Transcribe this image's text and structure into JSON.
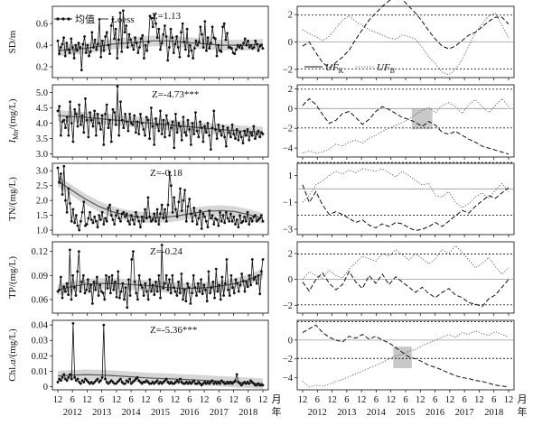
{
  "legend": {
    "mean_label": "均值",
    "loess_label": "Loess",
    "ufk_label": "UF",
    "ufk_sub": "K",
    "ufb_label": "UF",
    "ufb_sub": "B"
  },
  "x_axis": {
    "month_tick_labels": [
      "12",
      "6",
      "12",
      "6",
      "12",
      "6",
      "12",
      "6",
      "12",
      "6",
      "12",
      "6",
      "12",
      "6",
      "12"
    ],
    "year_labels": [
      "2012",
      "2013",
      "2014",
      "2015",
      "2016",
      "2017",
      "2018"
    ],
    "month_unit": "月",
    "year_unit": "年"
  },
  "mk_threshold": 1.96,
  "chart_data": [
    {
      "type": "line",
      "panel": "SD",
      "ylabel": "SD/m",
      "z_label": "Z=1.13",
      "yticks": [
        0.2,
        0.4,
        0.6
      ],
      "ylim": [
        0.1,
        0.76
      ],
      "x_start": "2011-12",
      "x_end": "2018-12",
      "values": [
        0.44,
        0.32,
        0.38,
        0.41,
        0.47,
        0.3,
        0.42,
        0.36,
        0.33,
        0.46,
        0.38,
        0.28,
        0.4,
        0.35,
        0.42,
        0.38,
        0.17,
        0.41,
        0.48,
        0.33,
        0.4,
        0.3,
        0.34,
        0.52,
        0.38,
        0.45,
        0.36,
        0.41,
        0.64,
        0.29,
        0.44,
        0.35,
        0.48,
        0.52,
        0.4,
        0.32,
        0.58,
        0.64,
        0.46,
        0.55,
        0.28,
        0.45,
        0.7,
        0.34,
        0.72,
        0.52,
        0.58,
        0.38,
        0.5,
        0.45,
        0.4,
        0.36,
        0.47,
        0.42,
        0.33,
        0.38,
        0.46,
        0.49,
        0.28,
        0.4,
        0.35,
        0.43,
        0.67,
        0.65,
        0.57,
        0.68,
        0.6,
        0.47,
        0.55,
        0.36,
        0.42,
        0.5,
        0.58,
        0.48,
        0.26,
        0.38,
        0.55,
        0.47,
        0.33,
        0.41,
        0.48,
        0.38,
        0.29,
        0.52,
        0.6,
        0.43,
        0.36,
        0.55,
        0.3,
        0.4,
        0.35,
        0.28,
        0.37,
        0.44,
        0.4,
        0.43,
        0.57,
        0.5,
        0.38,
        0.62,
        0.35,
        0.47,
        0.37,
        0.42,
        0.57,
        0.47,
        0.46,
        0.3,
        0.4,
        0.35,
        0.34,
        0.57,
        0.6,
        0.45,
        0.51,
        0.38,
        0.38,
        0.37,
        0.33,
        0.32,
        0.36,
        0.4,
        0.38,
        0.4,
        0.37,
        0.42,
        0.46,
        0.4,
        0.44,
        0.38,
        0.4,
        0.37,
        0.38,
        0.44,
        0.41,
        0.35,
        0.39,
        0.4,
        0.37
      ],
      "loess": [
        0.35,
        0.36,
        0.37,
        0.39,
        0.41,
        0.42,
        0.43,
        0.44,
        0.44,
        0.43,
        0.42,
        0.41,
        0.4,
        0.4,
        0.4,
        0.41
      ],
      "mk_ylim": [
        -2.6,
        2.6
      ],
      "mk_yticks": [
        -2,
        0,
        2
      ],
      "ufk": [
        -0.3,
        0.0,
        -0.8,
        -1.5,
        -1.9,
        -1.5,
        -1.1,
        -0.6,
        0.2,
        0.9,
        1.6,
        2.1,
        2.6,
        3.0,
        3.3,
        3.1,
        2.6,
        2.1,
        1.5,
        0.8,
        0.2,
        -0.3,
        -0.5,
        -0.3,
        0.1,
        0.5,
        0.7,
        1.1,
        1.5,
        1.8,
        1.8,
        1.3
      ],
      "ufb": [
        0.9,
        0.6,
        0.4,
        0.1,
        0.4,
        1.0,
        1.6,
        1.9,
        1.5,
        1.2,
        0.9,
        0.7,
        0.5,
        0.3,
        0.2,
        0.5,
        0.4,
        0.2,
        -0.4,
        -1.1,
        -1.6,
        -2.2,
        -2.4,
        -2.0,
        -1.3,
        -0.3,
        0.7,
        1.3,
        1.9,
        2.1,
        1.2,
        0.3
      ],
      "shade": null
    },
    {
      "type": "line",
      "panel": "IMn",
      "ylabel": "I",
      "ylabel_sub": "Mn",
      "ylabel_tail": "/(mg/L)",
      "z_label": "Z=-4.73***",
      "yticks": [
        3.0,
        3.5,
        4.0,
        4.5,
        5.0
      ],
      "ylim": [
        2.9,
        5.25
      ],
      "x_start": "2011-12",
      "x_end": "2018-12",
      "values": [
        4.4,
        4.55,
        3.6,
        4.05,
        4.1,
        3.85,
        4.2,
        3.6,
        4.7,
        4.0,
        3.4,
        4.45,
        4.3,
        3.9,
        4.6,
        3.95,
        4.25,
        3.7,
        4.8,
        4.1,
        3.55,
        4.35,
        4.1,
        3.9,
        4.4,
        3.6,
        4.3,
        4.0,
        3.8,
        4.25,
        3.3,
        4.3,
        4.6,
        3.85,
        4.1,
        3.4,
        4.45,
        4.35,
        3.95,
        5.2,
        3.6,
        4.7,
        4.1,
        3.85,
        4.3,
        4.05,
        3.75,
        4.3,
        4.0,
        3.95,
        4.25,
        3.7,
        4.05,
        3.65,
        4.3,
        4.0,
        3.8,
        3.6,
        4.2,
        4.1,
        3.5,
        4.5,
        3.9,
        3.3,
        4.15,
        3.95,
        3.75,
        4.4,
        3.65,
        4.1,
        3.55,
        4.25,
        4.0,
        3.6,
        3.85,
        4.05,
        3.2,
        4.3,
        3.7,
        4.0,
        3.9,
        3.45,
        4.2,
        3.7,
        3.6,
        4.1,
        3.8,
        3.3,
        4.0,
        3.65,
        4.35,
        3.75,
        3.55,
        4.05,
        3.85,
        3.4,
        3.9,
        3.7,
        4.0,
        3.6,
        3.15,
        3.85,
        4.4,
        3.8,
        3.5,
        3.95,
        3.75,
        3.6,
        3.9,
        3.55,
        3.25,
        3.85,
        3.7,
        3.55,
        3.95,
        3.65,
        3.5,
        3.8,
        3.45,
        3.7,
        3.55,
        3.35,
        3.75,
        3.6,
        3.8,
        3.45,
        3.7,
        3.6,
        3.9,
        3.5,
        3.65,
        3.75,
        3.55,
        3.7,
        3.65
      ],
      "loess": [
        4.25,
        4.22,
        4.19,
        4.15,
        4.11,
        4.07,
        4.03,
        3.99,
        3.95,
        3.91,
        3.87,
        3.83,
        3.79,
        3.76,
        3.73,
        3.71
      ],
      "mk_ylim": [
        -4.9,
        2.4
      ],
      "mk_yticks": [
        -4,
        -2,
        0,
        2
      ],
      "ufk": [
        0.3,
        1.0,
        0.4,
        -0.6,
        -1.5,
        -1.2,
        -0.5,
        -0.3,
        -0.9,
        -1.6,
        -1.1,
        -0.3,
        0.2,
        -0.1,
        -0.5,
        -0.9,
        -1.1,
        -1.4,
        -1.8,
        -1.3,
        -1.7,
        -2.4,
        -2.6,
        -2.3,
        -2.7,
        -3.1,
        -3.4,
        -3.8,
        -4.0,
        -4.2,
        -4.4,
        -4.6
      ],
      "ufb": [
        -4.5,
        -4.3,
        -4.5,
        -4.4,
        -4.1,
        -3.6,
        -3.8,
        -3.4,
        -3.2,
        -3.5,
        -3.0,
        -2.7,
        -2.3,
        -2.0,
        -1.7,
        -1.4,
        -1.1,
        -0.6,
        -0.2,
        0.1,
        -0.4,
        0.3,
        0.6,
        0.2,
        -0.5,
        0.4,
        0.9,
        0.2,
        -0.4,
        0.3,
        1.0,
        0.2
      ],
      "shade": {
        "x_from": 0.53,
        "x_to": 0.63,
        "y_from": -2.1,
        "y_to": 0.0
      }
    },
    {
      "type": "line",
      "panel": "TN",
      "ylabel": "TN/(mg/L)",
      "z_label": "Z=-0.18",
      "yticks": [
        1.0,
        1.5,
        2.0,
        2.5,
        3.0
      ],
      "ylim": [
        0.85,
        3.25
      ],
      "x_start": "2011-12",
      "x_end": "2018-12",
      "values": [
        3.1,
        2.6,
        2.9,
        2.2,
        3.15,
        2.0,
        1.6,
        2.4,
        1.9,
        1.3,
        1.7,
        1.25,
        1.5,
        1.15,
        1.0,
        1.3,
        1.6,
        1.95,
        1.15,
        1.2,
        1.4,
        1.6,
        1.35,
        1.25,
        1.45,
        1.3,
        1.1,
        1.5,
        1.35,
        1.6,
        1.2,
        1.4,
        1.3,
        1.75,
        1.85,
        1.5,
        1.35,
        1.2,
        1.5,
        1.65,
        1.4,
        1.3,
        1.55,
        1.6,
        1.45,
        1.55,
        1.3,
        1.2,
        1.5,
        1.35,
        1.2,
        1.6,
        1.45,
        1.3,
        1.1,
        1.45,
        1.3,
        1.7,
        1.4,
        2.1,
        1.45,
        1.3,
        1.35,
        1.55,
        1.3,
        1.7,
        1.2,
        1.55,
        1.85,
        1.4,
        1.7,
        1.3,
        1.85,
        2.95,
        2.5,
        1.6,
        2.1,
        1.7,
        1.45,
        1.95,
        2.4,
        1.65,
        2.0,
        2.35,
        1.3,
        1.8,
        2.05,
        1.55,
        1.3,
        1.75,
        1.5,
        1.2,
        1.4,
        1.65,
        1.05,
        1.55,
        1.45,
        1.3,
        1.1,
        1.65,
        1.4,
        1.5,
        1.2,
        1.4,
        1.35,
        1.15,
        1.6,
        1.3,
        1.5,
        1.25,
        1.6,
        1.4,
        1.3,
        1.55,
        1.3,
        1.45,
        1.2,
        1.35,
        1.1,
        1.5,
        1.25,
        1.3,
        1.45,
        1.3,
        1.6,
        1.2,
        1.4,
        1.3,
        1.45,
        1.5,
        1.3,
        1.35,
        1.4,
        1.5,
        1.3
      ],
      "loess": [
        2.65,
        2.35,
        2.05,
        1.8,
        1.62,
        1.5,
        1.44,
        1.42,
        1.44,
        1.5,
        1.58,
        1.64,
        1.66,
        1.62,
        1.52,
        1.4
      ],
      "mk_ylim": [
        -3.4,
        1.9
      ],
      "mk_yticks": [
        -3,
        -1,
        1
      ],
      "ufk": [
        0.3,
        -1.0,
        -0.2,
        -1.2,
        -1.9,
        -1.7,
        -1.9,
        -2.2,
        -2.5,
        -2.3,
        -2.7,
        -2.9,
        -2.6,
        -2.8,
        -2.5,
        -2.6,
        -2.9,
        -3.1,
        -3.0,
        -2.8,
        -2.5,
        -2.8,
        -2.4,
        -2.0,
        -1.6,
        -1.8,
        -1.3,
        -0.9,
        -0.5,
        -0.7,
        -0.3,
        0.1
      ],
      "ufb": [
        -1.0,
        -0.5,
        0.3,
        0.6,
        1.0,
        1.3,
        1.1,
        1.4,
        1.2,
        1.5,
        1.4,
        1.3,
        1.5,
        1.2,
        0.9,
        1.3,
        1.0,
        0.6,
        0.3,
        0.4,
        -0.5,
        -0.6,
        -0.2,
        -1.0,
        -1.4,
        -1.1,
        -0.6,
        -0.3,
        -0.7,
        -0.1,
        0.4,
        -0.2
      ],
      "shade": null
    },
    {
      "type": "line",
      "panel": "TP",
      "ylabel": "TP/(mg/L)",
      "z_label": "Z=-0.24",
      "yticks": [
        0.06,
        0.09,
        0.12
      ],
      "ylim": [
        0.043,
        0.132
      ],
      "x_start": "2011-12",
      "x_end": "2018-12",
      "values": [
        0.07,
        0.072,
        0.088,
        0.062,
        0.076,
        0.07,
        0.08,
        0.066,
        0.122,
        0.06,
        0.09,
        0.075,
        0.065,
        0.095,
        0.12,
        0.07,
        0.082,
        0.09,
        0.068,
        0.072,
        0.085,
        0.07,
        0.078,
        0.055,
        0.082,
        0.072,
        0.088,
        0.065,
        0.078,
        0.07,
        0.068,
        0.06,
        0.09,
        0.074,
        0.088,
        0.068,
        0.09,
        0.072,
        0.082,
        0.063,
        0.095,
        0.062,
        0.07,
        0.08,
        0.06,
        0.075,
        0.05,
        0.085,
        0.065,
        0.11,
        0.12,
        0.082,
        0.068,
        0.06,
        0.09,
        0.078,
        0.075,
        0.065,
        0.08,
        0.07,
        0.06,
        0.085,
        0.07,
        0.078,
        0.066,
        0.082,
        0.07,
        0.09,
        0.062,
        0.128,
        0.074,
        0.08,
        0.09,
        0.072,
        0.085,
        0.068,
        0.09,
        0.075,
        0.07,
        0.065,
        0.082,
        0.068,
        0.092,
        0.06,
        0.072,
        0.058,
        0.08,
        0.075,
        0.055,
        0.068,
        0.09,
        0.075,
        0.065,
        0.08,
        0.07,
        0.085,
        0.067,
        0.078,
        0.072,
        0.058,
        0.095,
        0.068,
        0.075,
        0.082,
        0.062,
        0.098,
        0.07,
        0.078,
        0.06,
        0.088,
        0.065,
        0.08,
        0.11,
        0.072,
        0.065,
        0.09,
        0.075,
        0.068,
        0.085,
        0.08,
        0.07,
        0.078,
        0.092,
        0.083,
        0.07,
        0.082,
        0.076,
        0.09,
        0.078,
        0.11,
        0.085,
        0.088,
        0.08,
        0.09,
        0.067,
        0.095,
        0.11
      ],
      "loess": [
        0.072,
        0.076,
        0.079,
        0.08,
        0.08,
        0.079,
        0.078,
        0.077,
        0.075,
        0.074,
        0.074,
        0.075,
        0.077,
        0.08,
        0.085,
        0.092
      ],
      "mk_ylim": [
        -2.6,
        2.9
      ],
      "mk_yticks": [
        -2,
        0,
        2
      ],
      "ufk": [
        -0.2,
        -0.9,
        0.0,
        0.5,
        -0.3,
        -0.8,
        -0.4,
        0.6,
        -0.2,
        -0.7,
        0.3,
        -0.3,
        0.4,
        -0.4,
        0.2,
        -0.2,
        -0.6,
        -1.0,
        -0.6,
        -1.1,
        -1.4,
        -1.0,
        -0.7,
        -1.2,
        -1.4,
        -1.8,
        -1.9,
        -2.1,
        -1.5,
        -1.2,
        -0.6,
        0.0
      ],
      "ufb": [
        0.0,
        0.6,
        0.3,
        0.1,
        0.7,
        0.3,
        0.1,
        0.8,
        1.3,
        1.8,
        1.6,
        1.4,
        2.0,
        1.8,
        2.3,
        1.9,
        1.5,
        2.0,
        1.6,
        1.2,
        1.6,
        2.3,
        2.0,
        2.6,
        2.1,
        1.5,
        0.9,
        1.2,
        1.7,
        1.0,
        0.4,
        0.9
      ],
      "shade": null
    },
    {
      "type": "line",
      "panel": "Chla",
      "ylabel": "Chl.",
      "ylabel_italic": "a",
      "ylabel_tail": "/(mg/L)",
      "z_label": "Z=-5.36***",
      "yticks": [
        0,
        0.01,
        0.02,
        0.03,
        0.04
      ],
      "ylim": [
        -0.002,
        0.043
      ],
      "x_start": "2011-12",
      "x_end": "2018-12",
      "values": [
        0.003,
        0.005,
        0.004,
        0.006,
        0.008,
        0.005,
        0.004,
        0.006,
        0.008,
        0.005,
        0.041,
        0.006,
        0.004,
        0.005,
        0.003,
        0.002,
        0.004,
        0.003,
        0.005,
        0.004,
        0.003,
        0.002,
        0.003,
        0.002,
        0.003,
        0.004,
        0.005,
        0.003,
        0.004,
        0.006,
        0.04,
        0.005,
        0.003,
        0.002,
        0.003,
        0.004,
        0.003,
        0.002,
        0.002,
        0.003,
        0.004,
        0.005,
        0.003,
        0.002,
        0.002,
        0.004,
        0.003,
        0.005,
        0.002,
        0.003,
        0.004,
        0.005,
        0.006,
        0.004,
        0.003,
        0.002,
        0.003,
        0.003,
        0.004,
        0.003,
        0.002,
        0.002,
        0.003,
        0.002,
        0.003,
        0.004,
        0.002,
        0.003,
        0.002,
        0.003,
        0.004,
        0.005,
        0.003,
        0.002,
        0.003,
        0.002,
        0.002,
        0.003,
        0.004,
        0.003,
        0.005,
        0.003,
        0.002,
        0.002,
        0.003,
        0.002,
        0.003,
        0.002,
        0.003,
        0.004,
        0.002,
        0.002,
        0.003,
        0.002,
        0.001,
        0.002,
        0.003,
        0.002,
        0.003,
        0.002,
        0.003,
        0.004,
        0.002,
        0.003,
        0.002,
        0.003,
        0.002,
        0.004,
        0.003,
        0.002,
        0.002,
        0.003,
        0.002,
        0.003,
        0.002,
        0.003,
        0.004,
        0.008,
        0.003,
        0.002,
        0.001,
        0.002,
        0.003,
        0.002,
        0.003,
        0.002,
        0.004,
        0.003,
        0.002,
        0.001,
        0.001,
        0.002,
        0.001,
        0.001,
        0.001
      ],
      "loess": [
        0.007,
        0.0075,
        0.0078,
        0.0076,
        0.0072,
        0.0066,
        0.006,
        0.0055,
        0.0052,
        0.0048,
        0.0044,
        0.004,
        0.0035,
        0.003,
        0.0025,
        0.002
      ],
      "mk_ylim": [
        -5.3,
        2.1
      ],
      "mk_yticks": [
        -4,
        -2,
        0
      ],
      "ufk": [
        0.8,
        1.2,
        1.6,
        0.8,
        0.3,
        0.0,
        -0.2,
        0.4,
        0.2,
        0.6,
        0.1,
        0.4,
        0.0,
        -0.3,
        -0.8,
        -1.3,
        -1.8,
        -2.0,
        -2.3,
        -2.7,
        -2.9,
        -3.2,
        -3.5,
        -3.8,
        -4.0,
        -4.1,
        -4.3,
        -4.4,
        -4.6,
        -4.8,
        -4.9,
        -5.0
      ],
      "ufb": [
        -4.4,
        -5.0,
        -4.8,
        -4.9,
        -4.7,
        -4.4,
        -4.2,
        -3.9,
        -3.6,
        -3.3,
        -3.0,
        -2.7,
        -2.4,
        -2.0,
        -1.7,
        -1.5,
        -1.2,
        -1.0,
        -0.6,
        -0.3,
        0.0,
        0.3,
        0.6,
        0.3,
        0.8,
        0.6,
        1.0,
        0.7,
        0.5,
        0.9,
        0.6,
        0.3
      ],
      "shade": {
        "x_from": 0.44,
        "x_to": 0.53,
        "y_from": -3.0,
        "y_to": -0.7
      }
    }
  ]
}
